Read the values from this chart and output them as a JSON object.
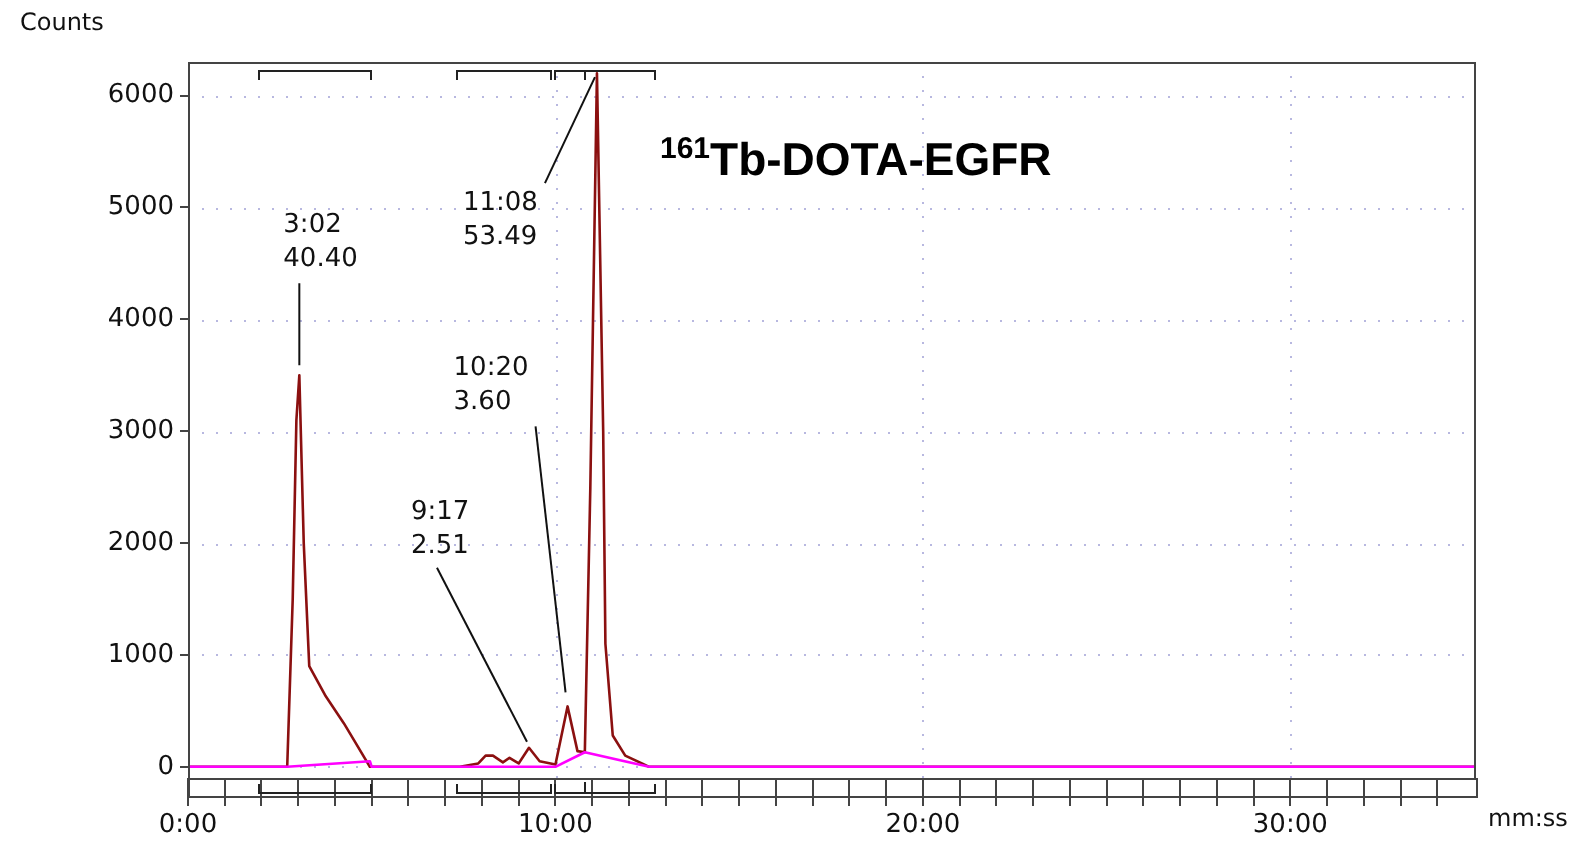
{
  "chart_data": {
    "type": "line",
    "title": "$^{161}$Tb-DOTA-EGFR",
    "xlabel": "mm:ss",
    "ylabel": "Counts",
    "xlim": [
      0,
      35
    ],
    "ylim": [
      -100,
      6300
    ],
    "xticks": [
      {
        "value": 0,
        "label": "0:00"
      },
      {
        "value": 1,
        "label": null
      },
      {
        "value": 2,
        "label": null
      },
      {
        "value": 3,
        "label": null
      },
      {
        "value": 4,
        "label": null
      },
      {
        "value": 5,
        "label": null
      },
      {
        "value": 6,
        "label": null
      },
      {
        "value": 7,
        "label": null
      },
      {
        "value": 8,
        "label": null
      },
      {
        "value": 9,
        "label": null
      },
      {
        "value": 10,
        "label": "10:00"
      },
      {
        "value": 11,
        "label": null
      },
      {
        "value": 12,
        "label": null
      },
      {
        "value": 13,
        "label": null
      },
      {
        "value": 14,
        "label": null
      },
      {
        "value": 15,
        "label": null
      },
      {
        "value": 16,
        "label": null
      },
      {
        "value": 17,
        "label": null
      },
      {
        "value": 18,
        "label": null
      },
      {
        "value": 19,
        "label": null
      },
      {
        "value": 20,
        "label": "20:00"
      },
      {
        "value": 21,
        "label": null
      },
      {
        "value": 22,
        "label": null
      },
      {
        "value": 23,
        "label": null
      },
      {
        "value": 24,
        "label": null
      },
      {
        "value": 25,
        "label": null
      },
      {
        "value": 26,
        "label": null
      },
      {
        "value": 27,
        "label": null
      },
      {
        "value": 28,
        "label": null
      },
      {
        "value": 29,
        "label": null
      },
      {
        "value": 30,
        "label": "30:00"
      },
      {
        "value": 31,
        "label": null
      },
      {
        "value": 32,
        "label": null
      },
      {
        "value": 33,
        "label": null
      },
      {
        "value": 34,
        "label": null
      }
    ],
    "yticks": [
      0,
      1000,
      2000,
      3000,
      4000,
      5000,
      6000
    ],
    "grid": true,
    "legend": false,
    "marker": "none",
    "line_style": "solid",
    "series": [
      {
        "color": "#8b1010",
        "x": [
          0,
          2.7,
          2.85,
          2.95,
          3.03,
          3.15,
          3.3,
          3.75,
          4.24,
          4.57,
          4.95,
          7.4,
          7.9,
          8.1,
          8.3,
          8.57,
          8.75,
          9.0,
          9.28,
          9.57,
          10.0,
          10.33,
          10.6,
          10.8,
          10.95,
          11.13,
          11.3,
          11.36,
          11.56,
          11.9,
          12.55,
          35
        ],
        "values": [
          0,
          0,
          1500,
          3100,
          3500,
          2000,
          900,
          630,
          390,
          210,
          0,
          0,
          30,
          100,
          100,
          40,
          80,
          30,
          170,
          50,
          20,
          540,
          140,
          130,
          2500,
          6200,
          3000,
          1100,
          280,
          100,
          0,
          0
        ]
      },
      {
        "color": "#ff00ff",
        "x": [
          0,
          2.7,
          4.95,
          5.0,
          10.0,
          10.8,
          12.55,
          35
        ],
        "values": [
          0,
          0,
          50,
          0,
          0,
          130,
          0,
          0
        ]
      }
    ],
    "annotations": [
      {
        "text": "3:02\n40.40",
        "x": 3.03,
        "y": 3500
      },
      {
        "text": "9:17\n2.51",
        "x": 9.28,
        "y": 170
      },
      {
        "text": "10:20\n3.60",
        "x": 10.33,
        "y": 540
      },
      {
        "text": "11:08\n53.49",
        "x": 11.13,
        "y": 6200
      }
    ]
  }
}
